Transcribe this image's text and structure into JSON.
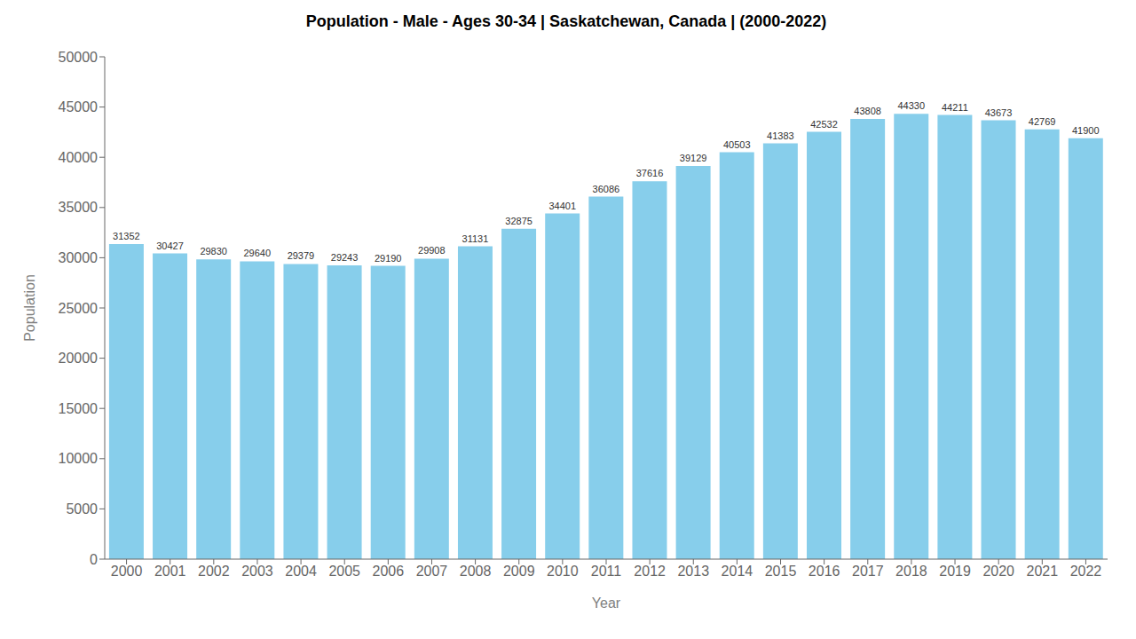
{
  "chart_data": {
    "type": "bar",
    "title": "Population - Male - Ages 30-34 | Saskatchewan, Canada |  (2000-2022)",
    "xlabel": "Year",
    "ylabel": "Population",
    "categories": [
      "2000",
      "2001",
      "2002",
      "2003",
      "2004",
      "2005",
      "2006",
      "2007",
      "2008",
      "2009",
      "2010",
      "2011",
      "2012",
      "2013",
      "2014",
      "2015",
      "2016",
      "2017",
      "2018",
      "2019",
      "2020",
      "2021",
      "2022"
    ],
    "values": [
      31352,
      30427,
      29830,
      29640,
      29379,
      29243,
      29190,
      29908,
      31131,
      32875,
      34401,
      36086,
      37616,
      39129,
      40503,
      41383,
      42532,
      43808,
      44330,
      44211,
      43673,
      42769,
      41900
    ],
    "color": "#87CEEB",
    "ylim": [
      0,
      50000
    ],
    "yticks": [
      0,
      5000,
      10000,
      15000,
      20000,
      25000,
      30000,
      35000,
      40000,
      45000,
      50000
    ],
    "grid": false,
    "data_labels": true
  }
}
